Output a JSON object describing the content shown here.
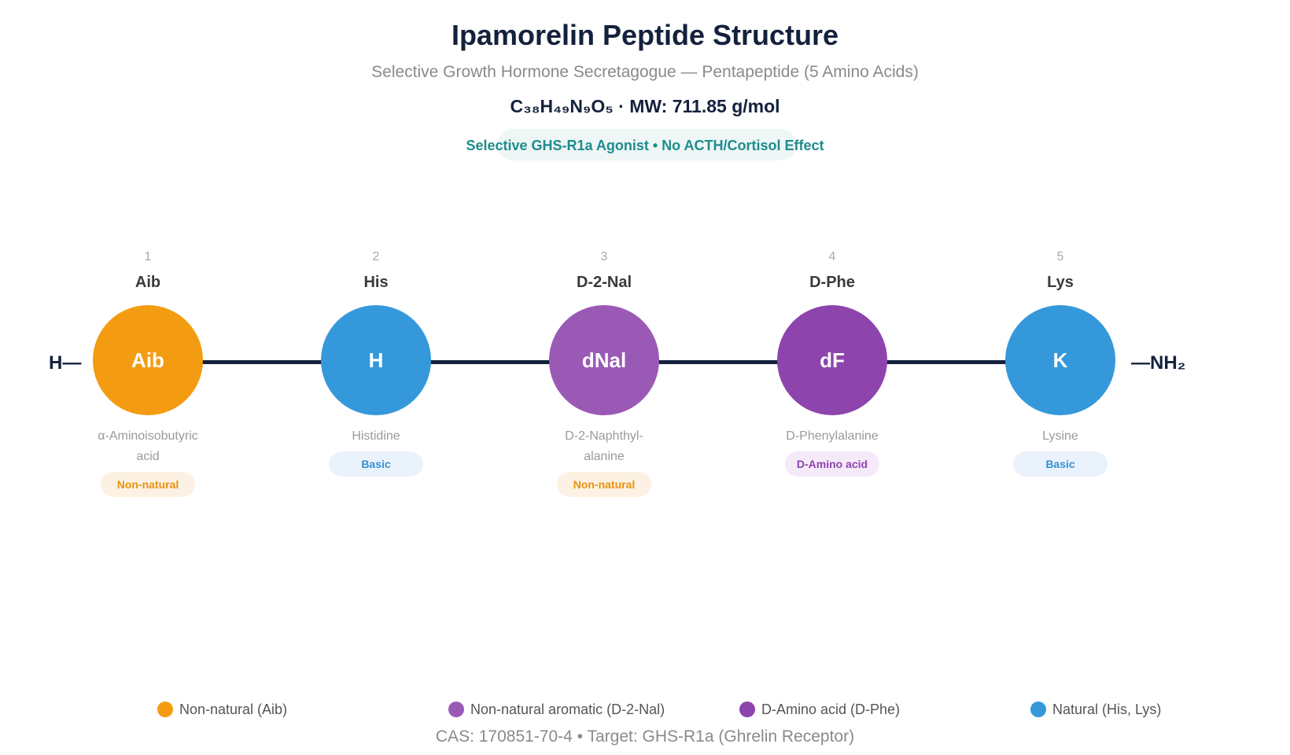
{
  "header": {
    "title": "Ipamorelin Peptide Structure",
    "subtitle": "Selective Growth Hormone Secretagogue — Pentapeptide (5 Amino Acids)",
    "formula": "C₃₈H₄₉N₉O₅ · MW: 711.85 g/mol",
    "badge": "Selective GHS-R1a Agonist • No ACTH/Cortisol Effect"
  },
  "chain": {
    "n_terminus": "H—",
    "c_terminus": "—NH₂",
    "line_color": "#14213d"
  },
  "residues": [
    {
      "position": "1",
      "abbr": "Aib",
      "symbol": "Aib",
      "name": "α-Aminoisobutyric acid",
      "tag": "Non-natural",
      "color": "#f39c12",
      "tag_bg": "#fdf1e3",
      "tag_color": "#e8920f"
    },
    {
      "position": "2",
      "abbr": "His",
      "symbol": "H",
      "name": "Histidine",
      "tag": "Basic",
      "color": "#3498db",
      "tag_bg": "#eaf3fb",
      "tag_color": "#3a8fd0"
    },
    {
      "position": "3",
      "abbr": "D-2-Nal",
      "symbol": "dNal",
      "name": "D-2-Naphthyl-alanine",
      "tag": "Non-natural",
      "color": "#9b59b6",
      "tag_bg": "#fdf1e3",
      "tag_color": "#e8920f"
    },
    {
      "position": "4",
      "abbr": "D-Phe",
      "symbol": "dF",
      "name": "D-Phenylalanine",
      "tag": "D-Amino acid",
      "color": "#8e44ad",
      "tag_bg": "#f5eaf8",
      "tag_color": "#8e44ad"
    },
    {
      "position": "5",
      "abbr": "Lys",
      "symbol": "K",
      "name": "Lysine",
      "tag": "Basic",
      "color": "#3498db",
      "tag_bg": "#eaf3fb",
      "tag_color": "#3a8fd0"
    }
  ],
  "legend": [
    {
      "label": "Non-natural (Aib)",
      "color": "#f39c12"
    },
    {
      "label": "Non-natural aromatic (D-2-Nal)",
      "color": "#9b59b6"
    },
    {
      "label": "D-Amino acid (D-Phe)",
      "color": "#8e44ad"
    },
    {
      "label": "Natural (His, Lys)",
      "color": "#3498db"
    }
  ],
  "footer": "CAS: 170851-70-4 • Target: GHS-R1a (Ghrelin Receptor)"
}
